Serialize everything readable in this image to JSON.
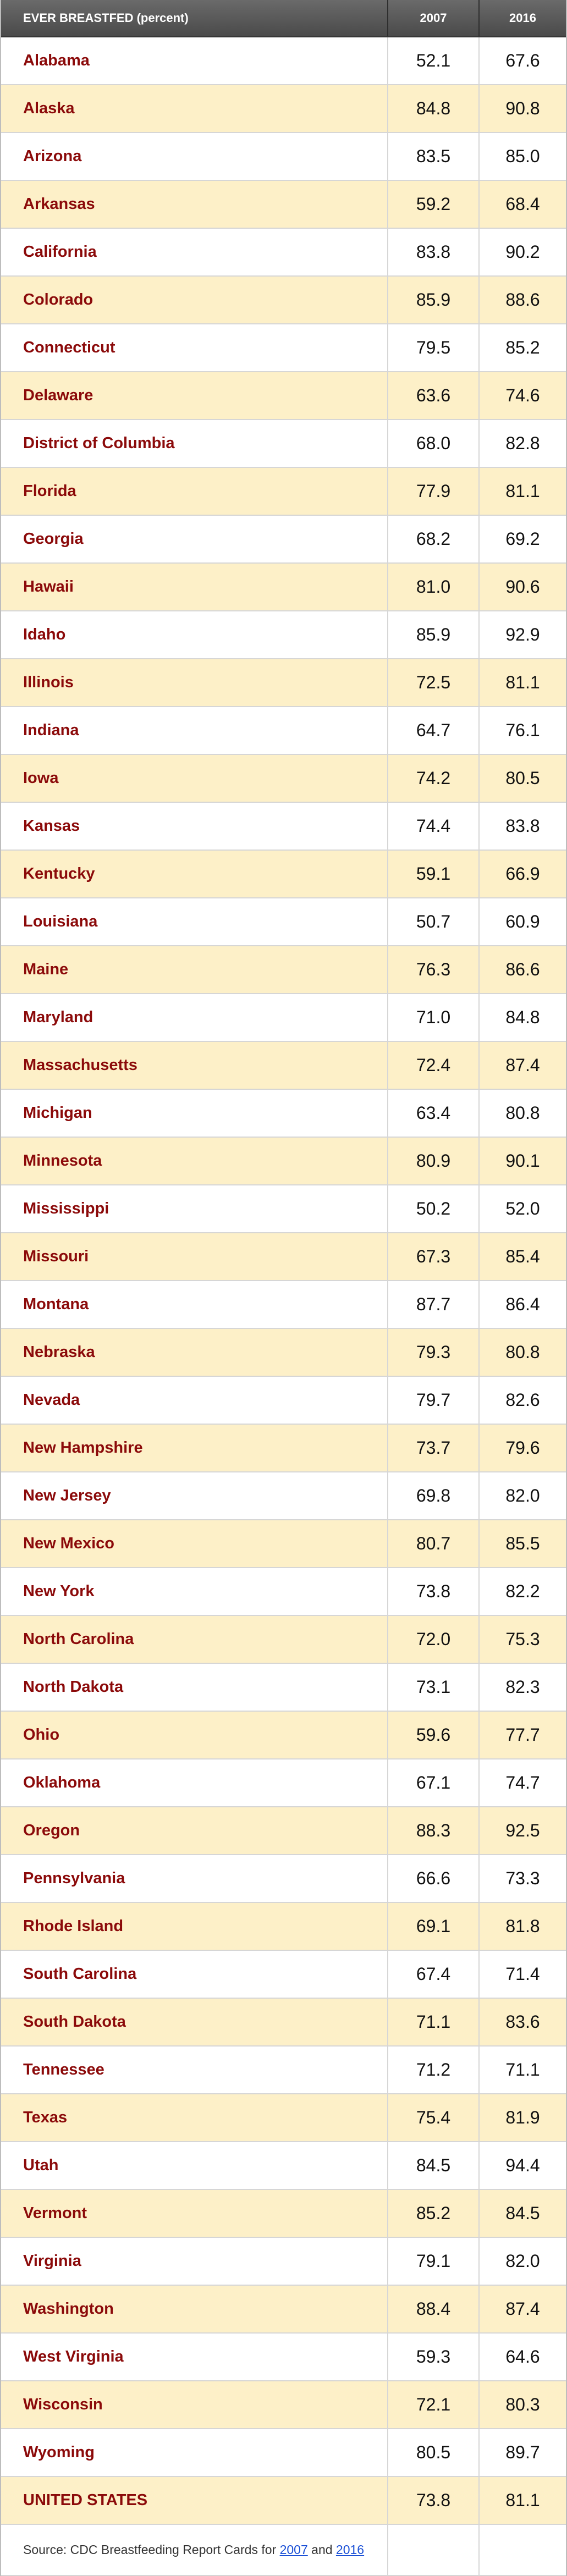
{
  "table": {
    "header": [
      "EVER BREASTFED (percent)",
      "2007",
      "2016"
    ],
    "rows": [
      [
        "Alabama",
        "52.1",
        "67.6"
      ],
      [
        "Alaska",
        "84.8",
        "90.8"
      ],
      [
        "Arizona",
        "83.5",
        "85.0"
      ],
      [
        "Arkansas",
        "59.2",
        "68.4"
      ],
      [
        "California",
        "83.8",
        "90.2"
      ],
      [
        "Colorado",
        "85.9",
        "88.6"
      ],
      [
        "Connecticut",
        "79.5",
        "85.2"
      ],
      [
        "Delaware",
        "63.6",
        "74.6"
      ],
      [
        "District of Columbia",
        "68.0",
        "82.8"
      ],
      [
        "Florida",
        "77.9",
        "81.1"
      ],
      [
        "Georgia",
        "68.2",
        "69.2"
      ],
      [
        "Hawaii",
        "81.0",
        "90.6"
      ],
      [
        "Idaho",
        "85.9",
        "92.9"
      ],
      [
        "Illinois",
        "72.5",
        "81.1"
      ],
      [
        "Indiana",
        "64.7",
        "76.1"
      ],
      [
        "Iowa",
        "74.2",
        "80.5"
      ],
      [
        "Kansas",
        "74.4",
        "83.8"
      ],
      [
        "Kentucky",
        "59.1",
        "66.9"
      ],
      [
        "Louisiana",
        "50.7",
        "60.9"
      ],
      [
        "Maine",
        "76.3",
        "86.6"
      ],
      [
        "Maryland",
        "71.0",
        "84.8"
      ],
      [
        "Massachusetts",
        "72.4",
        "87.4"
      ],
      [
        "Michigan",
        "63.4",
        "80.8"
      ],
      [
        "Minnesota",
        "80.9",
        "90.1"
      ],
      [
        "Mississippi",
        "50.2",
        "52.0"
      ],
      [
        "Missouri",
        "67.3",
        "85.4"
      ],
      [
        "Montana",
        "87.7",
        "86.4"
      ],
      [
        "Nebraska",
        "79.3",
        "80.8"
      ],
      [
        "Nevada",
        "79.7",
        "82.6"
      ],
      [
        "New Hampshire",
        "73.7",
        "79.6"
      ],
      [
        "New Jersey",
        "69.8",
        "82.0"
      ],
      [
        "New Mexico",
        "80.7",
        "85.5"
      ],
      [
        "New York",
        "73.8",
        "82.2"
      ],
      [
        "North Carolina",
        "72.0",
        "75.3"
      ],
      [
        "North Dakota",
        "73.1",
        "82.3"
      ],
      [
        "Ohio",
        "59.6",
        "77.7"
      ],
      [
        "Oklahoma",
        "67.1",
        "74.7"
      ],
      [
        "Oregon",
        "88.3",
        "92.5"
      ],
      [
        "Pennsylvania",
        "66.6",
        "73.3"
      ],
      [
        "Rhode Island",
        "69.1",
        "81.8"
      ],
      [
        "South Carolina",
        "67.4",
        "71.4"
      ],
      [
        "South Dakota",
        "71.1",
        "83.6"
      ],
      [
        "Tennessee",
        "71.2",
        "71.1"
      ],
      [
        "Texas",
        "75.4",
        "81.9"
      ],
      [
        "Utah",
        "84.5",
        "94.4"
      ],
      [
        "Vermont",
        "85.2",
        "84.5"
      ],
      [
        "Virginia",
        "79.1",
        "82.0"
      ],
      [
        "Washington",
        "88.4",
        "87.4"
      ],
      [
        "West Virginia",
        "59.3",
        "64.6"
      ],
      [
        "Wisconsin",
        "72.1",
        "80.3"
      ],
      [
        "Wyoming",
        "80.5",
        "89.7"
      ],
      [
        "UNITED STATES",
        "73.8",
        "81.1"
      ]
    ],
    "footer": {
      "text": "Source: CDC Breastfeeding Report Cards for",
      "links": [
        "2007",
        "2016"
      ],
      "and": "and"
    }
  }
}
